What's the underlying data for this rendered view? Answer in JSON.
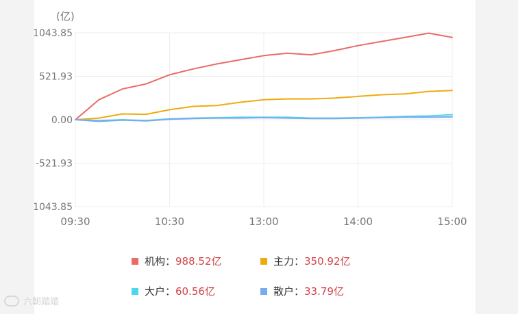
{
  "unit_label": "(亿)",
  "legend": [
    {
      "label": "机构：",
      "value": "988.52亿",
      "color": "#ea6b66"
    },
    {
      "label": "主力：",
      "value": "350.92亿",
      "color": "#f0aa0d"
    },
    {
      "label": "大户：",
      "value": "60.56亿",
      "color": "#4fd6e8"
    },
    {
      "label": "散户：",
      "value": "33.79亿",
      "color": "#78aaf0"
    }
  ],
  "watermark": "六朝踏踏",
  "chart_data": {
    "type": "line",
    "ylabel": "(亿)",
    "ylim": [
      -1043.85,
      1043.85
    ],
    "yticks": [
      "1043.85",
      "521.93",
      "0.00",
      "-521.93",
      "-1043.85"
    ],
    "yticks_values": [
      1043.85,
      521.93,
      0,
      -521.93,
      -1043.85
    ],
    "xticks": [
      "09:30",
      "10:30",
      "13:00",
      "14:00",
      "15:00"
    ],
    "x": [
      "09:30",
      "09:45",
      "10:00",
      "10:15",
      "10:30",
      "10:45",
      "11:00",
      "11:15",
      "11:30/13:00",
      "13:15",
      "13:30",
      "13:45",
      "14:00",
      "14:15",
      "14:30",
      "14:45",
      "15:00"
    ],
    "grid": true,
    "series": [
      {
        "name": "机构",
        "color": "#ea6b66",
        "values": [
          0,
          240,
          370,
          430,
          540,
          610,
          670,
          720,
          770,
          800,
          780,
          830,
          890,
          940,
          990,
          1040,
          988.52
        ]
      },
      {
        "name": "主力",
        "color": "#f0aa0d",
        "values": [
          0,
          20,
          70,
          65,
          120,
          160,
          170,
          210,
          240,
          250,
          250,
          260,
          280,
          300,
          310,
          340,
          350.92
        ]
      },
      {
        "name": "大户",
        "color": "#4fd6e8",
        "values": [
          0,
          -10,
          0,
          -10,
          10,
          20,
          25,
          30,
          30,
          30,
          20,
          20,
          25,
          30,
          40,
          45,
          60.56
        ]
      },
      {
        "name": "散户",
        "color": "#78aaf0",
        "values": [
          0,
          -20,
          -5,
          -15,
          5,
          15,
          20,
          20,
          25,
          20,
          15,
          15,
          20,
          25,
          30,
          30,
          33.79
        ]
      }
    ]
  }
}
